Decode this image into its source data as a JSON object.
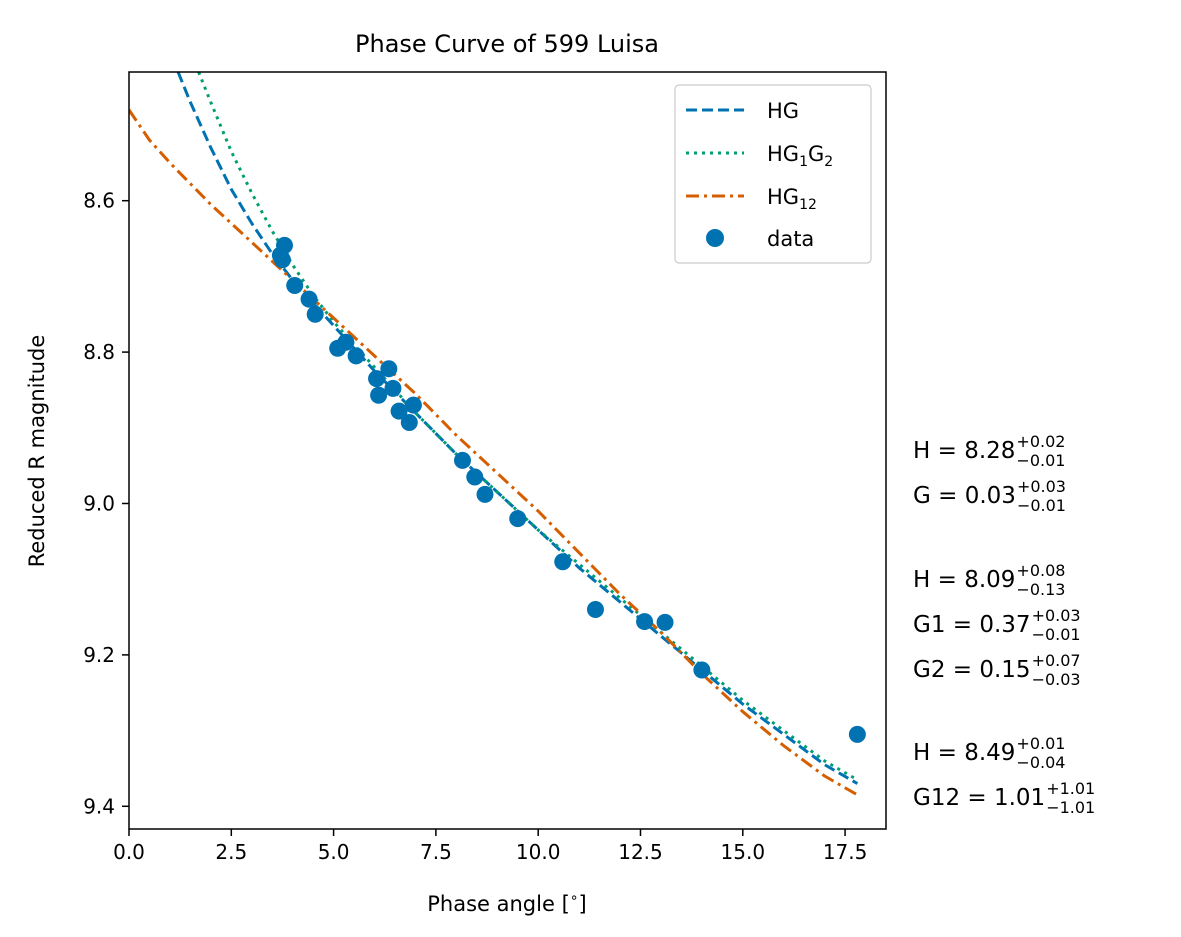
{
  "chart_data": {
    "type": "scatter",
    "title": "Phase Curve of 599 Luisa",
    "xlabel": "Phase angle [$^\\circ$]",
    "xlabel_main": "Phase angle [",
    "xlabel_deg": "∘",
    "xlabel_close": "]",
    "ylabel": "Reduced R magnitude",
    "xlim": [
      0.0,
      18.5
    ],
    "ylim": [
      9.43,
      8.43
    ],
    "y_inverted": true,
    "grid": false,
    "xticks": [
      0.0,
      2.5,
      5.0,
      7.5,
      10.0,
      12.5,
      15.0,
      17.5
    ],
    "xtick_labels": [
      "0.0",
      "2.5",
      "5.0",
      "7.5",
      "10.0",
      "12.5",
      "15.0",
      "17.5"
    ],
    "yticks": [
      8.6,
      8.8,
      9.0,
      9.2,
      9.4
    ],
    "ytick_labels": [
      "8.6",
      "8.8",
      "9.0",
      "9.2",
      "9.4"
    ],
    "legend_position": "top-right",
    "series": [
      {
        "name": "HG",
        "legend_base": "HG",
        "legend_sub1": "",
        "legend_mid": "",
        "legend_sub2": "",
        "kind": "line",
        "style": "dashed",
        "color": "#0072b2",
        "x": [
          1.2,
          1.5,
          2.0,
          2.5,
          3.0,
          3.5,
          4.0,
          4.5,
          5.0,
          6.0,
          7.0,
          8.0,
          9.0,
          10.0,
          11.0,
          12.0,
          13.0,
          14.0,
          15.0,
          16.0,
          17.0,
          17.8
        ],
        "y": [
          8.43,
          8.47,
          8.53,
          8.585,
          8.63,
          8.67,
          8.705,
          8.735,
          8.765,
          8.825,
          8.88,
          8.935,
          8.985,
          9.035,
          9.085,
          9.13,
          9.175,
          9.22,
          9.265,
          9.305,
          9.345,
          9.37
        ]
      },
      {
        "name": "HG1G2",
        "legend_base": "HG",
        "legend_sub1": "1",
        "legend_mid": "G",
        "legend_sub2": "2",
        "kind": "line",
        "style": "dotted",
        "color": "#009e73",
        "x": [
          1.7,
          2.0,
          2.5,
          3.0,
          3.5,
          4.0,
          4.5,
          5.0,
          6.0,
          7.0,
          8.0,
          9.0,
          10.0,
          11.0,
          12.0,
          13.0,
          14.0,
          15.0,
          16.0,
          17.0,
          17.8
        ],
        "y": [
          8.43,
          8.47,
          8.535,
          8.59,
          8.64,
          8.685,
          8.725,
          8.76,
          8.82,
          8.88,
          8.935,
          8.985,
          9.035,
          9.08,
          9.125,
          9.17,
          9.215,
          9.26,
          9.3,
          9.34,
          9.365
        ]
      },
      {
        "name": "HG12",
        "legend_base": "HG",
        "legend_sub1": "12",
        "legend_mid": "",
        "legend_sub2": "",
        "kind": "line",
        "style": "dashdot",
        "color": "#d55e00",
        "x": [
          0.0,
          0.5,
          1.0,
          2.0,
          3.0,
          4.0,
          5.0,
          6.0,
          7.0,
          8.0,
          9.0,
          10.0,
          11.0,
          12.0,
          13.0,
          14.0,
          15.0,
          16.0,
          17.0,
          17.8
        ],
        "y": [
          8.48,
          8.52,
          8.55,
          8.605,
          8.655,
          8.705,
          8.755,
          8.805,
          8.855,
          8.91,
          8.96,
          9.01,
          9.065,
          9.12,
          9.17,
          9.225,
          9.275,
          9.32,
          9.36,
          9.385
        ]
      },
      {
        "name": "data",
        "legend_base": "data",
        "legend_sub1": "",
        "legend_mid": "",
        "legend_sub2": "",
        "kind": "scatter",
        "color": "#0072b2",
        "points": [
          [
            3.7,
            8.672
          ],
          [
            3.8,
            8.659
          ],
          [
            3.75,
            8.678
          ],
          [
            4.05,
            8.712
          ],
          [
            4.4,
            8.73
          ],
          [
            4.55,
            8.75
          ],
          [
            5.1,
            8.795
          ],
          [
            5.3,
            8.787
          ],
          [
            5.55,
            8.805
          ],
          [
            6.05,
            8.835
          ],
          [
            6.1,
            8.857
          ],
          [
            6.35,
            8.822
          ],
          [
            6.45,
            8.848
          ],
          [
            6.6,
            8.878
          ],
          [
            6.85,
            8.893
          ],
          [
            6.95,
            8.87
          ],
          [
            8.15,
            8.943
          ],
          [
            8.45,
            8.965
          ],
          [
            8.7,
            8.988
          ],
          [
            9.5,
            9.02
          ],
          [
            10.6,
            9.077
          ],
          [
            11.4,
            9.14
          ],
          [
            12.6,
            9.156
          ],
          [
            13.1,
            9.157
          ],
          [
            14.0,
            9.22
          ],
          [
            17.8,
            9.305
          ]
        ]
      }
    ],
    "annotations": [
      {
        "label": "H = 8.28",
        "sup": "+0.02",
        "sub": "−0.01"
      },
      {
        "label": "G = 0.03 ",
        "sup": "+0.03",
        "sub": "−0.01"
      },
      {
        "label": "H =   8.09",
        "sup": "+0.08",
        "sub": "−0.13"
      },
      {
        "label": "G1 = 0.37 ",
        "sup": "+0.03",
        "sub": "−0.01"
      },
      {
        "label": "G2 = 0.15 ",
        "sup": "+0.07",
        "sub": "−0.03"
      },
      {
        "label": "H =     8.49",
        "sup": "+0.01",
        "sub": "−0.04"
      },
      {
        "label": "G12 = 1.01",
        "sup": "+1.01",
        "sub": "−1.01"
      }
    ]
  }
}
